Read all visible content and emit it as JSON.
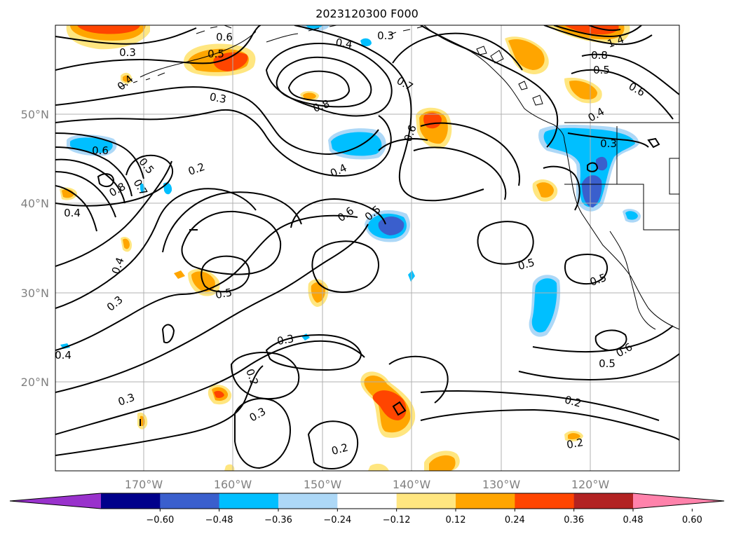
{
  "title": "2023120300 F000",
  "map": {
    "lat_ticks": [
      "50°N",
      "40°N",
      "30°N",
      "20°N"
    ],
    "lon_ticks": [
      "170°W",
      "160°W",
      "150°W",
      "140°W",
      "130°W",
      "120°W"
    ],
    "grid": true
  },
  "colorbar": {
    "extend": "both",
    "colors": [
      "#9932cc",
      "#00008b",
      "#3a5fcd",
      "#00bfff",
      "#add8f7",
      "#ffffff",
      "#ffe680",
      "#ffa500",
      "#ff4500",
      "#b22222",
      "#ff82ab"
    ],
    "ticks": [
      "−0.60",
      "−0.48",
      "−0.36",
      "−0.24",
      "−0.12",
      "0.12",
      "0.24",
      "0.36",
      "0.48",
      "0.60"
    ]
  },
  "contour_labels": [
    "0.3",
    "0.6",
    "0.5",
    "0.4",
    "0.3",
    "0.4",
    "0.3",
    "0.7",
    "0.8",
    "0.6",
    "1.4",
    "0.8",
    "0.5",
    "0.6",
    "0.4",
    "0.3",
    "0.6",
    "0.5",
    "0.7",
    "0.8",
    "0.2",
    "0.4",
    "0.4",
    "0.6",
    "0.5",
    "0.5",
    "0.5",
    "0.4",
    "0.3",
    "0.5",
    "0.3",
    "0.4",
    "0.2",
    "0.3",
    "0.6",
    "0.5",
    "0.3",
    "0.2",
    "0.2",
    "0.2"
  ]
}
